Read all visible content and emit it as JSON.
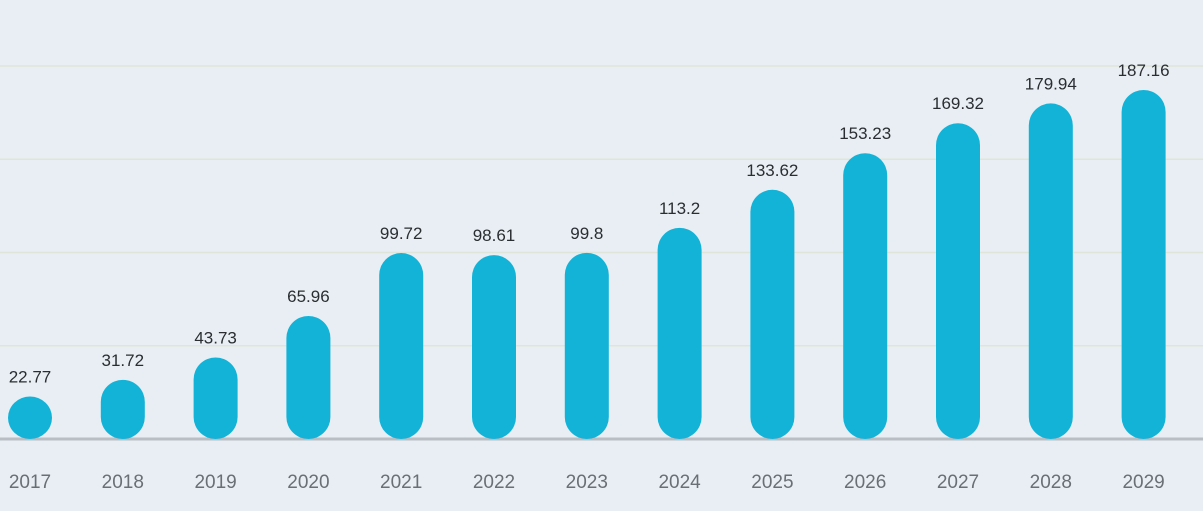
{
  "chart_data": {
    "type": "bar",
    "categories": [
      "2017",
      "2018",
      "2019",
      "2020",
      "2021",
      "2022",
      "2023",
      "2024",
      "2025",
      "2026",
      "2027",
      "2028",
      "2029"
    ],
    "values": [
      22.77,
      31.72,
      43.73,
      65.96,
      99.72,
      98.61,
      99.8,
      113.2,
      133.62,
      153.23,
      169.32,
      179.94,
      187.16
    ],
    "value_labels": [
      "22.77",
      "31.72",
      "43.73",
      "65.96",
      "99.72",
      "98.61",
      "99.8",
      "113.2",
      "133.62",
      "153.23",
      "169.32",
      "179.94",
      "187.16"
    ],
    "title": "",
    "xlabel": "",
    "ylabel": "",
    "ylim": [
      0,
      200
    ],
    "grid": true,
    "colors": {
      "bar": "#13b3d8",
      "background": "#e8eef3",
      "gridline": "#dfe6d9",
      "baseline": "#b9bec4"
    }
  }
}
